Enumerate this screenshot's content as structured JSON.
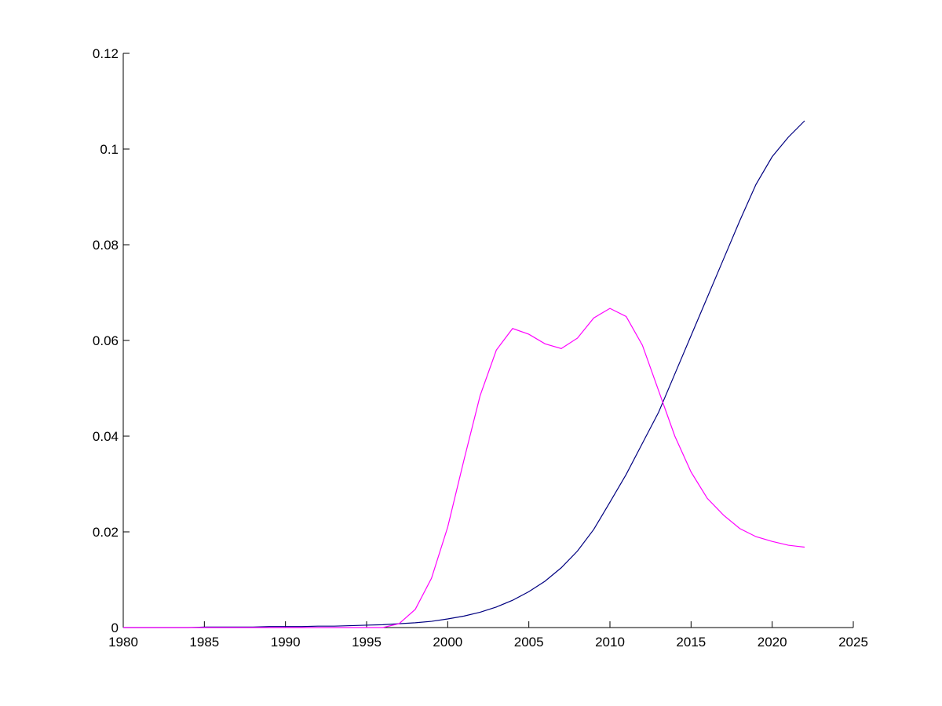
{
  "chart_data": {
    "type": "line",
    "x": [
      1980,
      1981,
      1982,
      1983,
      1984,
      1985,
      1986,
      1987,
      1988,
      1989,
      1990,
      1991,
      1992,
      1993,
      1994,
      1995,
      1996,
      1997,
      1998,
      1999,
      2000,
      2001,
      2002,
      2003,
      2004,
      2005,
      2006,
      2007,
      2008,
      2009,
      2010,
      2011,
      2012,
      2013,
      2014,
      2015,
      2016,
      2017,
      2018,
      2019,
      2020,
      2021,
      2022
    ],
    "series": [
      {
        "color": "#000080",
        "values": [
          0,
          0,
          0,
          0,
          0,
          0.0001,
          0.0001,
          0.0001,
          0.0001,
          0.0002,
          0.0002,
          0.0002,
          0.0003,
          0.0003,
          0.0004,
          0.0005,
          0.0006,
          0.0008,
          0.001,
          0.0013,
          0.0018,
          0.0024,
          0.0032,
          0.0043,
          0.0057,
          0.0075,
          0.0097,
          0.0125,
          0.016,
          0.0205,
          0.0262,
          0.032,
          0.0385,
          0.045,
          0.053,
          0.061,
          0.069,
          0.077,
          0.085,
          0.0926,
          0.0984,
          0.1025,
          0.1059
        ]
      },
      {
        "color": "#ff00ff",
        "values": [
          0,
          0,
          0,
          0,
          0,
          0,
          0,
          0,
          0,
          0,
          0,
          0,
          0,
          0,
          0,
          0,
          0,
          0.0008,
          0.0038,
          0.0103,
          0.021,
          0.035,
          0.0485,
          0.058,
          0.0625,
          0.0613,
          0.0593,
          0.0583,
          0.0605,
          0.0647,
          0.0667,
          0.065,
          0.059,
          0.0495,
          0.04,
          0.0325,
          0.027,
          0.0235,
          0.0207,
          0.019,
          0.018,
          0.0172,
          0.0168
        ]
      }
    ],
    "xlim": [
      1980,
      2025
    ],
    "xticks": [
      1980,
      1985,
      1990,
      1995,
      2000,
      2005,
      2010,
      2015,
      2020,
      2025
    ],
    "ylim": [
      0,
      0.12
    ],
    "yticks": [
      0,
      0.02,
      0.04,
      0.06,
      0.08,
      0.1,
      0.12
    ]
  }
}
